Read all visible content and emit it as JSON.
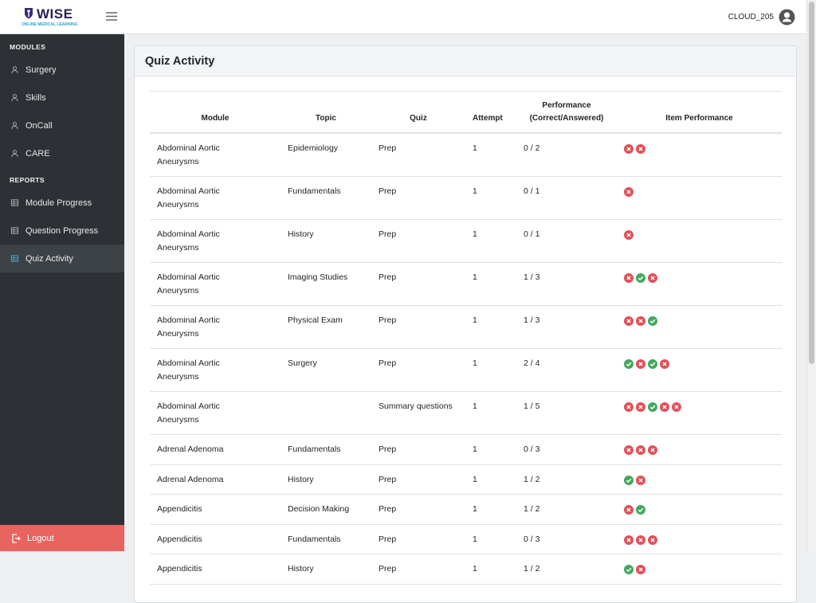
{
  "header": {
    "logo": "WISE",
    "tagline": "ONLINE MEDICAL LEARNING",
    "user": "CLOUD_205"
  },
  "sidebar": {
    "sections": [
      {
        "title": "MODULES",
        "items": [
          "Surgery",
          "Skills",
          "OnCall",
          "CARE"
        ]
      },
      {
        "title": "REPORTS",
        "items": [
          "Module Progress",
          "Question Progress",
          "Quiz Activity"
        ]
      }
    ],
    "active": "Quiz Activity",
    "logout": "Logout"
  },
  "card": {
    "title": "Quiz Activity"
  },
  "table": {
    "columns": [
      "Module",
      "Topic",
      "Quiz",
      "Attempt",
      "Performance (Correct/Answered)",
      "Item Performance"
    ],
    "rows": [
      [
        "Abdominal Aortic Aneurysms",
        "Epidemiology",
        "Prep",
        1,
        "0 / 2",
        [
          false,
          false
        ]
      ],
      [
        "Abdominal Aortic Aneurysms",
        "Fundamentals",
        "Prep",
        1,
        "0 / 1",
        [
          false
        ]
      ],
      [
        "Abdominal Aortic Aneurysms",
        "History",
        "Prep",
        1,
        "0 / 1",
        [
          false
        ]
      ],
      [
        "Abdominal Aortic Aneurysms",
        "Imaging Studies",
        "Prep",
        1,
        "1 / 3",
        [
          false,
          true,
          false
        ]
      ],
      [
        "Abdominal Aortic Aneurysms",
        "Physical Exam",
        "Prep",
        1,
        "1 / 3",
        [
          false,
          false,
          true
        ]
      ],
      [
        "Abdominal Aortic Aneurysms",
        "Surgery",
        "Prep",
        1,
        "2 / 4",
        [
          true,
          false,
          true,
          false
        ]
      ],
      [
        "Abdominal Aortic Aneurysms",
        null,
        "Summary questions",
        1,
        "1 / 5",
        [
          false,
          false,
          true,
          false,
          false
        ]
      ],
      [
        "Adrenal Adenoma",
        "Fundamentals",
        "Prep",
        1,
        "0 / 3",
        [
          false,
          false,
          false
        ]
      ],
      [
        "Adrenal Adenoma",
        "History",
        "Prep",
        1,
        "1 / 2",
        [
          true,
          false
        ]
      ],
      [
        "Appendicitis",
        "Decision Making",
        "Prep",
        1,
        "1 / 2",
        [
          false,
          true
        ]
      ],
      [
        "Appendicitis",
        "Fundamentals",
        "Prep",
        1,
        "0 / 3",
        [
          false,
          false,
          false
        ]
      ],
      [
        "Appendicitis",
        "History",
        "Prep",
        1,
        "1 / 2",
        [
          true,
          false
        ]
      ]
    ]
  }
}
